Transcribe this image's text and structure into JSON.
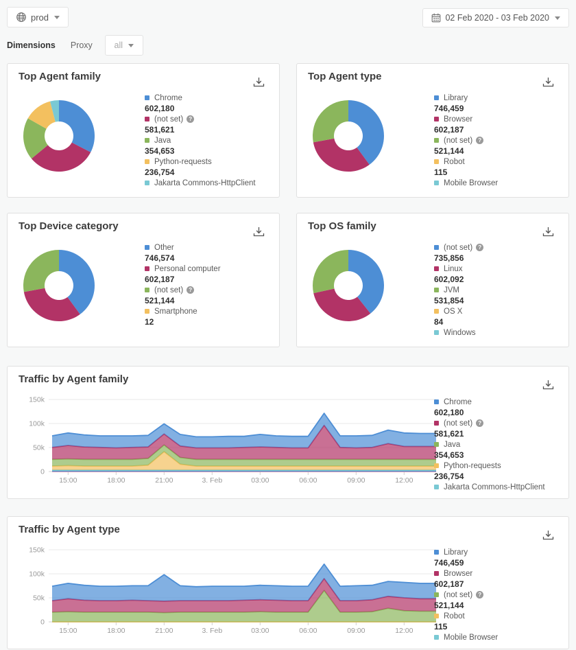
{
  "topbar": {
    "environment": {
      "label": "prod"
    },
    "date_range": {
      "label": "02 Feb 2020 - 03 Feb 2020"
    }
  },
  "filters": {
    "dimensions_label": "Dimensions",
    "proxy_label": "Proxy",
    "proxy_value": "all"
  },
  "palette": {
    "blue": "#4d8ed5",
    "crimson": "#b23366",
    "green": "#8bb65c",
    "yellow": "#f3c05f",
    "teal": "#7ac9d4",
    "grid": "#e9e9e9",
    "axis": "#cfcfcf",
    "axis_text": "#999999"
  },
  "chart_data": [
    {
      "type": "pie",
      "title": "Top Agent family",
      "legend_position": "right",
      "series": [
        {
          "label": "Chrome",
          "value": 602180,
          "display": "602,180",
          "color": "blue",
          "help": false
        },
        {
          "label": "(not set)",
          "value": 581621,
          "display": "581,621",
          "color": "crimson",
          "help": true
        },
        {
          "label": "Java",
          "value": 354653,
          "display": "354,653",
          "color": "green",
          "help": false
        },
        {
          "label": "Python-requests",
          "value": 236754,
          "display": "236,754",
          "color": "yellow",
          "help": false
        },
        {
          "label": "Jakarta Commons-HttpClient",
          "value": 74000,
          "display": "",
          "color": "teal",
          "help": false,
          "value_estimated": true
        }
      ]
    },
    {
      "type": "pie",
      "title": "Top Agent type",
      "legend_position": "right",
      "series": [
        {
          "label": "Library",
          "value": 746459,
          "display": "746,459",
          "color": "blue",
          "help": false
        },
        {
          "label": "Browser",
          "value": 602187,
          "display": "602,187",
          "color": "crimson",
          "help": false
        },
        {
          "label": "(not set)",
          "value": 521144,
          "display": "521,144",
          "color": "green",
          "help": true
        },
        {
          "label": "Robot",
          "value": 115,
          "display": "115",
          "color": "yellow",
          "help": false
        },
        {
          "label": "Mobile Browser",
          "value": 40,
          "display": "",
          "color": "teal",
          "help": false,
          "value_estimated": true
        }
      ]
    },
    {
      "type": "pie",
      "title": "Top Device category",
      "legend_position": "right",
      "series": [
        {
          "label": "Other",
          "value": 746574,
          "display": "746,574",
          "color": "blue",
          "help": false
        },
        {
          "label": "Personal computer",
          "value": 602187,
          "display": "602,187",
          "color": "crimson",
          "help": false
        },
        {
          "label": "(not set)",
          "value": 521144,
          "display": "521,144",
          "color": "green",
          "help": true
        },
        {
          "label": "Smartphone",
          "value": 12,
          "display": "12",
          "color": "yellow",
          "help": false
        }
      ]
    },
    {
      "type": "pie",
      "title": "Top OS family",
      "legend_position": "right",
      "series": [
        {
          "label": "(not set)",
          "value": 735856,
          "display": "735,856",
          "color": "blue",
          "help": true
        },
        {
          "label": "Linux",
          "value": 602092,
          "display": "602,092",
          "color": "crimson",
          "help": false
        },
        {
          "label": "JVM",
          "value": 531854,
          "display": "531,854",
          "color": "green",
          "help": false
        },
        {
          "label": "OS X",
          "value": 84,
          "display": "84",
          "color": "yellow",
          "help": false
        },
        {
          "label": "Windows",
          "value": 30,
          "display": "",
          "color": "teal",
          "help": false,
          "value_estimated": true
        }
      ]
    },
    {
      "type": "area",
      "title": "Traffic by Agent family",
      "stacked": true,
      "unit": "requests (values in thousands)",
      "ylim": [
        0,
        150
      ],
      "y_ticks": [
        {
          "label": "150k",
          "v": 150
        },
        {
          "label": "100k",
          "v": 100
        },
        {
          "label": "50k",
          "v": 50
        },
        {
          "label": "0",
          "v": 0
        }
      ],
      "x_ticks": [
        {
          "label": "15:00",
          "i": 1
        },
        {
          "label": "18:00",
          "i": 4
        },
        {
          "label": "21:00",
          "i": 7
        },
        {
          "label": "3. Feb",
          "i": 10
        },
        {
          "label": "03:00",
          "i": 13
        },
        {
          "label": "06:00",
          "i": 16
        },
        {
          "label": "09:00",
          "i": 19
        },
        {
          "label": "12:00",
          "i": 22
        }
      ],
      "series": [
        {
          "label": "Chrome",
          "display": "602,180",
          "color": "blue",
          "help": false,
          "values_k": [
            24,
            26,
            25,
            24,
            25,
            24,
            24,
            21,
            24,
            23,
            23,
            24,
            23,
            26,
            24,
            24,
            24,
            25,
            24,
            25,
            25,
            28,
            28,
            27,
            27
          ]
        },
        {
          "label": "(not set)",
          "display": "581,621",
          "color": "crimson",
          "help": true,
          "values_k": [
            25,
            28,
            26,
            25,
            24,
            25,
            24,
            23,
            24,
            24,
            24,
            24,
            25,
            26,
            25,
            24,
            24,
            71,
            25,
            24,
            25,
            33,
            27,
            27,
            27
          ]
        },
        {
          "label": "Java",
          "display": "354,653",
          "color": "green",
          "help": false,
          "values_k": [
            14,
            14,
            14,
            14,
            14,
            14,
            14,
            14,
            14,
            14,
            14,
            14,
            14,
            14,
            14,
            14,
            14,
            14,
            14,
            14,
            14,
            14,
            14,
            14,
            14
          ]
        },
        {
          "label": "Python-requests",
          "display": "236,754",
          "color": "yellow",
          "help": false,
          "values_k": [
            8,
            9,
            8,
            8,
            8,
            8,
            10,
            38,
            12,
            8,
            8,
            8,
            8,
            8,
            8,
            8,
            8,
            8,
            8,
            8,
            8,
            8,
            8,
            8,
            8
          ]
        },
        {
          "label": "Jakarta Commons-HttpClient",
          "display": "",
          "color": "teal",
          "help": false,
          "values_k": [
            2,
            2,
            2,
            2,
            2,
            2,
            2,
            2,
            2,
            2,
            2,
            2,
            2,
            2,
            2,
            2,
            2,
            2,
            2,
            2,
            2,
            2,
            2,
            2,
            2
          ]
        }
      ],
      "baseline_series": [
        {
          "color": "crimson",
          "const_k": 0.6
        },
        {
          "color": "blue",
          "const_k": 0.7
        }
      ]
    },
    {
      "type": "area",
      "title": "Traffic by Agent type",
      "stacked": true,
      "unit": "requests (values in thousands)",
      "ylim": [
        0,
        150
      ],
      "y_ticks": [
        {
          "label": "150k",
          "v": 150
        },
        {
          "label": "100k",
          "v": 100
        },
        {
          "label": "50k",
          "v": 50
        },
        {
          "label": "0",
          "v": 0
        }
      ],
      "x_ticks": [
        {
          "label": "15:00",
          "i": 1
        },
        {
          "label": "18:00",
          "i": 4
        },
        {
          "label": "21:00",
          "i": 7
        },
        {
          "label": "3. Feb",
          "i": 10
        },
        {
          "label": "03:00",
          "i": 13
        },
        {
          "label": "06:00",
          "i": 16
        },
        {
          "label": "09:00",
          "i": 19
        },
        {
          "label": "12:00",
          "i": 22
        }
      ],
      "series": [
        {
          "label": "Library",
          "display": "746,459",
          "color": "blue",
          "help": false,
          "values_k": [
            30,
            32,
            31,
            30,
            30,
            30,
            31,
            55,
            31,
            29,
            30,
            30,
            29,
            30,
            30,
            30,
            30,
            30,
            30,
            31,
            30,
            31,
            32,
            32,
            32
          ]
        },
        {
          "label": "Browser",
          "display": "602,187",
          "color": "crimson",
          "help": false,
          "values_k": [
            24,
            27,
            25,
            24,
            24,
            25,
            24,
            24,
            24,
            24,
            24,
            24,
            25,
            25,
            25,
            24,
            24,
            25,
            24,
            24,
            25,
            25,
            27,
            26,
            26
          ]
        },
        {
          "label": "(not set)",
          "display": "521,144",
          "color": "green",
          "help": true,
          "values_k": [
            20,
            21,
            20,
            20,
            20,
            20,
            20,
            19,
            20,
            20,
            20,
            20,
            20,
            21,
            20,
            20,
            20,
            65,
            20,
            20,
            21,
            28,
            23,
            22,
            22
          ]
        },
        {
          "label": "Robot",
          "display": "115",
          "color": "yellow",
          "help": false,
          "const_k": 0.05
        },
        {
          "label": "Mobile Browser",
          "display": "",
          "color": "teal",
          "help": false,
          "const_k": 0.05
        }
      ],
      "baseline_series": []
    }
  ]
}
